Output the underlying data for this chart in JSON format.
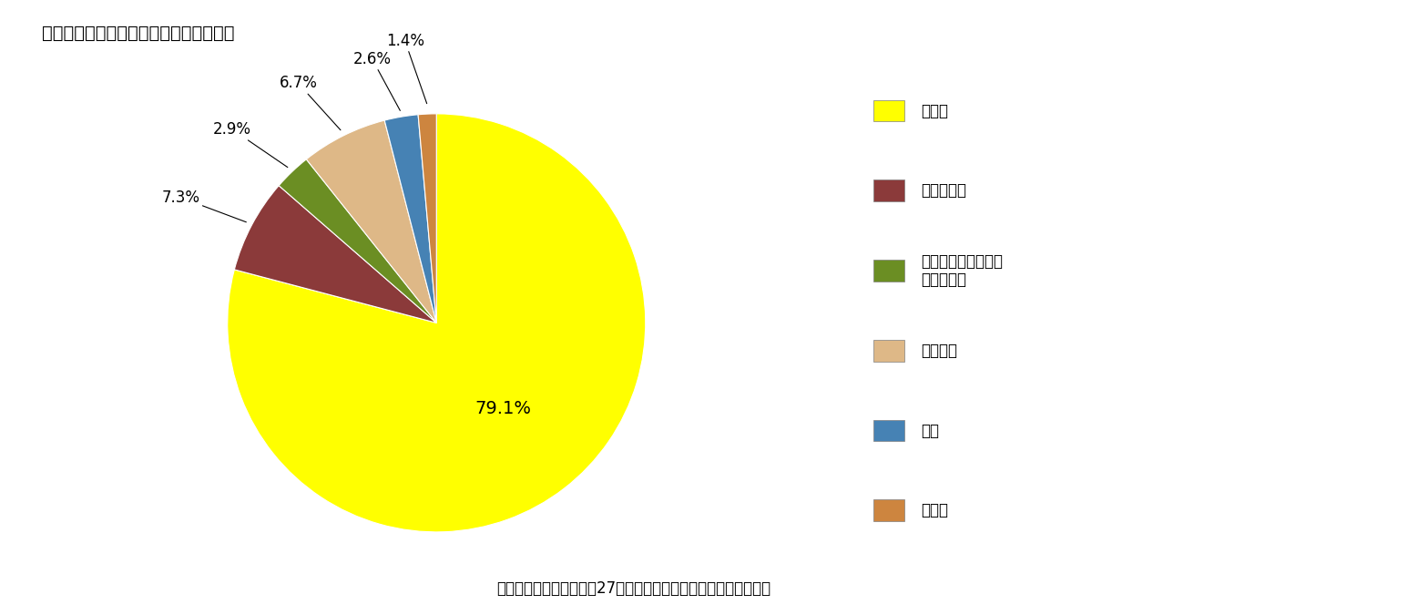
{
  "title": "》図表３「非正規の仕事の具体的な職位",
  "title_display": "【図表３】非正規の仕事の具体的な職位",
  "labels": [
    "パート",
    "アルバイト",
    "労働者派遣事業所の\n　派遣社員",
    "契約社員",
    "嘱託",
    "その他"
  ],
  "values": [
    79.1,
    7.3,
    2.9,
    6.7,
    2.6,
    1.4
  ],
  "colors": [
    "#FFFF00",
    "#8B3A3A",
    "#6B8E23",
    "#DEB887",
    "#4682B4",
    "#CD853F"
  ],
  "pct_labels": [
    "79.1%",
    "7.3%",
    "2.9%",
    "6.7%",
    "2.6%",
    "1.4%"
  ],
  "source_text": "資料）厚生労働省「平成27年　国民生活基礎調査」より筆者作成",
  "background_color": "#FFFFFF",
  "title_fontsize": 14,
  "label_fontsize": 12,
  "legend_fontsize": 12,
  "source_fontsize": 12
}
